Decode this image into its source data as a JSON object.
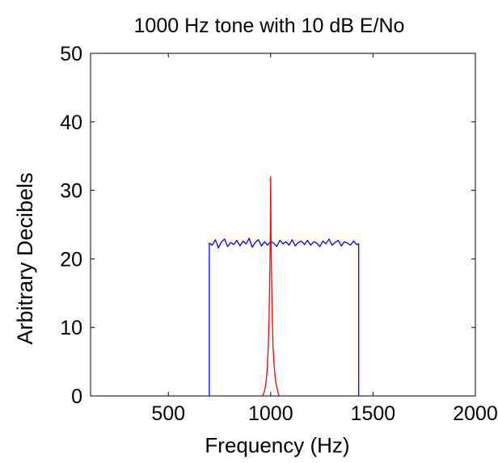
{
  "chart_data": {
    "type": "line",
    "title": "1000 Hz tone with 10 dB E/No",
    "xlabel": "Frequency (Hz)",
    "ylabel": "Arbitrary Decibels",
    "xlim": [
      120,
      2000
    ],
    "ylim": [
      0,
      50
    ],
    "xticks": [
      500,
      1000,
      1500,
      2000
    ],
    "yticks": [
      0,
      10,
      20,
      30,
      40,
      50
    ],
    "grid": false,
    "legend": "none",
    "series": [
      {
        "color": "#0000ff",
        "x": [
          700,
          700,
          715,
          730,
          745,
          760,
          775,
          790,
          805,
          820,
          835,
          850,
          865,
          880,
          895,
          910,
          925,
          940,
          955,
          970,
          985,
          1000,
          1015,
          1030,
          1045,
          1060,
          1075,
          1090,
          1105,
          1120,
          1135,
          1150,
          1165,
          1180,
          1195,
          1210,
          1225,
          1240,
          1255,
          1270,
          1285,
          1300,
          1315,
          1330,
          1345,
          1360,
          1375,
          1390,
          1405,
          1420,
          1430,
          1430
        ],
        "y": [
          0,
          22.3,
          22.0,
          22.8,
          21.6,
          22.5,
          22.9,
          21.8,
          22.4,
          22.1,
          22.7,
          21.9,
          22.6,
          22.2,
          23.0,
          21.7,
          22.4,
          22.8,
          21.9,
          22.5,
          22.0,
          22.6,
          22.3,
          21.8,
          22.7,
          22.2,
          22.5,
          22.0,
          22.8,
          21.9,
          22.4,
          22.6,
          22.1,
          22.7,
          22.0,
          22.5,
          22.3,
          21.8,
          22.6,
          22.2,
          22.9,
          22.0,
          22.4,
          22.7,
          21.9,
          22.5,
          22.3,
          22.0,
          22.6,
          22.1,
          22.2,
          0
        ]
      },
      {
        "color": "#ff0000",
        "x": [
          960,
          968,
          975,
          982,
          988,
          992,
          995,
          997,
          998.5,
          1000,
          1001.5,
          1003,
          1005,
          1008,
          1012,
          1018,
          1025,
          1032,
          1040
        ],
        "y": [
          0,
          0.5,
          1.5,
          3.5,
          7,
          11,
          16,
          20,
          24,
          32,
          24,
          20,
          16,
          11,
          7,
          4,
          2,
          1,
          0
        ]
      }
    ]
  }
}
